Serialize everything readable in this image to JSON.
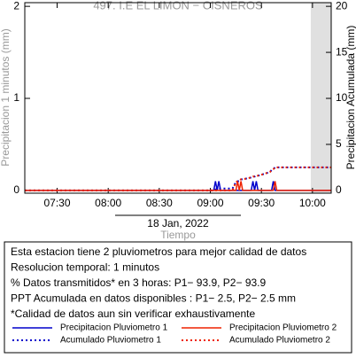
{
  "chart_data": {
    "type": "line",
    "title": "497. I.E EL LIMON − CISNEROS",
    "y_label": "Precipitacion 1 minutos (mm)",
    "y2_label": "Precipitacion Acumulada (mm)",
    "date": "18 Jan, 2022",
    "x_label": "Tiempo",
    "x": [
      "07:11",
      "09:02",
      "09:03",
      "09:04",
      "09:05",
      "09:06",
      "09:13",
      "09:15",
      "09:16",
      "09:17",
      "09:18",
      "09:19",
      "09:24",
      "09:25",
      "09:26",
      "09:27",
      "09:28",
      "09:30",
      "09:35",
      "09:36",
      "09:37",
      "09:38",
      "09:39",
      "10:11"
    ],
    "xlim": [
      "07:11",
      "10:11"
    ],
    "xticks": [
      "07:30",
      "08:00",
      "08:30",
      "09:00",
      "09:30",
      "10:00"
    ],
    "ylim": [
      -0.03,
      2.04
    ],
    "yticks": [
      0,
      1,
      2
    ],
    "y2lim": [
      -0.3,
      20.4
    ],
    "y2ticks": [
      0,
      5,
      10,
      15,
      20
    ],
    "shaded_range": [
      "09:59",
      "10:11"
    ],
    "series": [
      {
        "name": "Precipitacion Pluviometro 1",
        "color": "#0000cc",
        "style": "solid",
        "values": [
          0,
          0,
          0.1,
          0,
          0.1,
          0,
          0,
          0,
          0,
          0,
          0,
          0,
          0,
          0.1,
          0,
          0.1,
          0,
          0,
          0,
          0,
          0.1,
          0,
          0,
          0
        ]
      },
      {
        "name": "Precipitacion Pluviometro 2",
        "color": "#ee2200",
        "style": "solid",
        "values": [
          0,
          0,
          0,
          0,
          0,
          0,
          0,
          0,
          0.1,
          0,
          0.1,
          0,
          0,
          0,
          0,
          0,
          0,
          0,
          0,
          0,
          0,
          0.1,
          0,
          0
        ]
      },
      {
        "name": "Acumulado Pluviometro 1",
        "color": "#0000cc",
        "style": "dotted",
        "axis": "y2",
        "values": [
          0,
          0,
          0.1,
          0.1,
          0.2,
          0.2,
          0.2,
          0.9,
          1.0,
          1.0,
          1.2,
          1.2,
          1.4,
          1.5,
          1.5,
          1.6,
          1.6,
          1.7,
          2.0,
          2.2,
          2.3,
          2.5,
          2.5,
          2.5
        ]
      },
      {
        "name": "Acumulado Pluviometro 2",
        "color": "#ee2200",
        "style": "dotted",
        "axis": "y2",
        "values": [
          0,
          0,
          0,
          0,
          0,
          0,
          0,
          0.9,
          1.0,
          1.1,
          1.2,
          1.2,
          1.4,
          1.5,
          1.5,
          1.6,
          1.6,
          1.7,
          2.0,
          2.2,
          2.3,
          2.5,
          2.5,
          2.5
        ]
      }
    ],
    "info": [
      "Esta estacion tiene 2 pluviometros para mejor calidad de datos",
      "Resolucion temporal: 1 minutos",
      "% Datos transmitidos* en 3 horas: P1− 93.9, P2− 93.9",
      "PPT Acumulada en datos disponibles : P1−  2.5, P2−  2.5 mm",
      "*Calidad de datos aun sin verificar exhaustivamente"
    ]
  }
}
